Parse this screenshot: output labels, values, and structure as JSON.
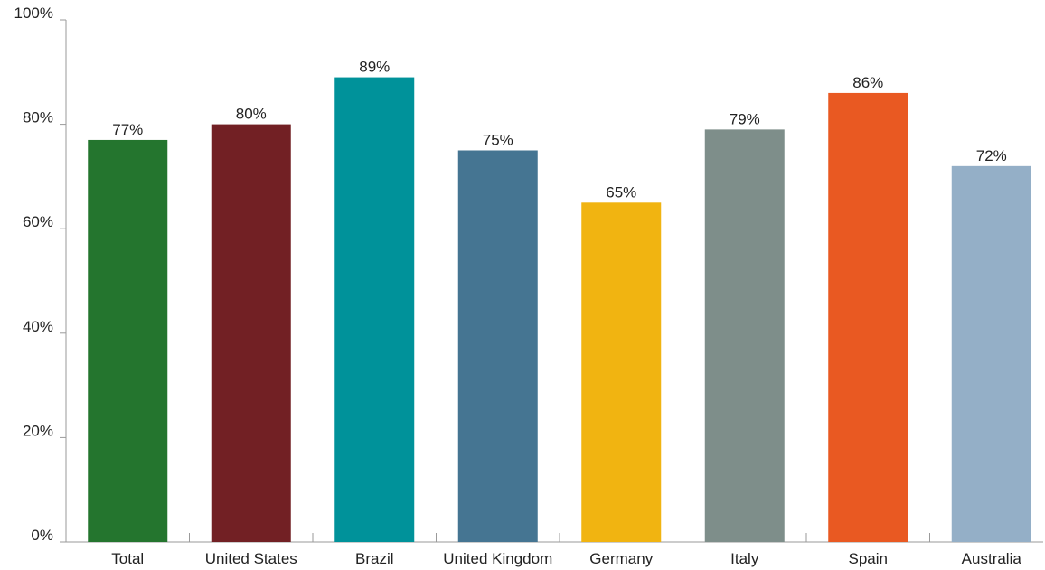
{
  "chart_data": {
    "type": "bar",
    "categories": [
      "Total",
      "United States",
      "Brazil",
      "United Kingdom",
      "Germany",
      "Italy",
      "Spain",
      "Australia"
    ],
    "values": [
      77,
      80,
      89,
      75,
      65,
      79,
      86,
      72
    ],
    "value_labels": [
      "77%",
      "80%",
      "89%",
      "75%",
      "65%",
      "79%",
      "86%",
      "72%"
    ],
    "colors": [
      "#24752e",
      "#722024",
      "#00929a",
      "#457592",
      "#f1b411",
      "#7e8e8a",
      "#e95922",
      "#94afc7"
    ],
    "ylim": [
      0,
      100
    ],
    "yticks": [
      0,
      20,
      40,
      60,
      80,
      100
    ],
    "ytick_labels": [
      "0%",
      "20%",
      "40%",
      "60%",
      "80%",
      "100%"
    ],
    "grid": false,
    "legend": "none"
  }
}
